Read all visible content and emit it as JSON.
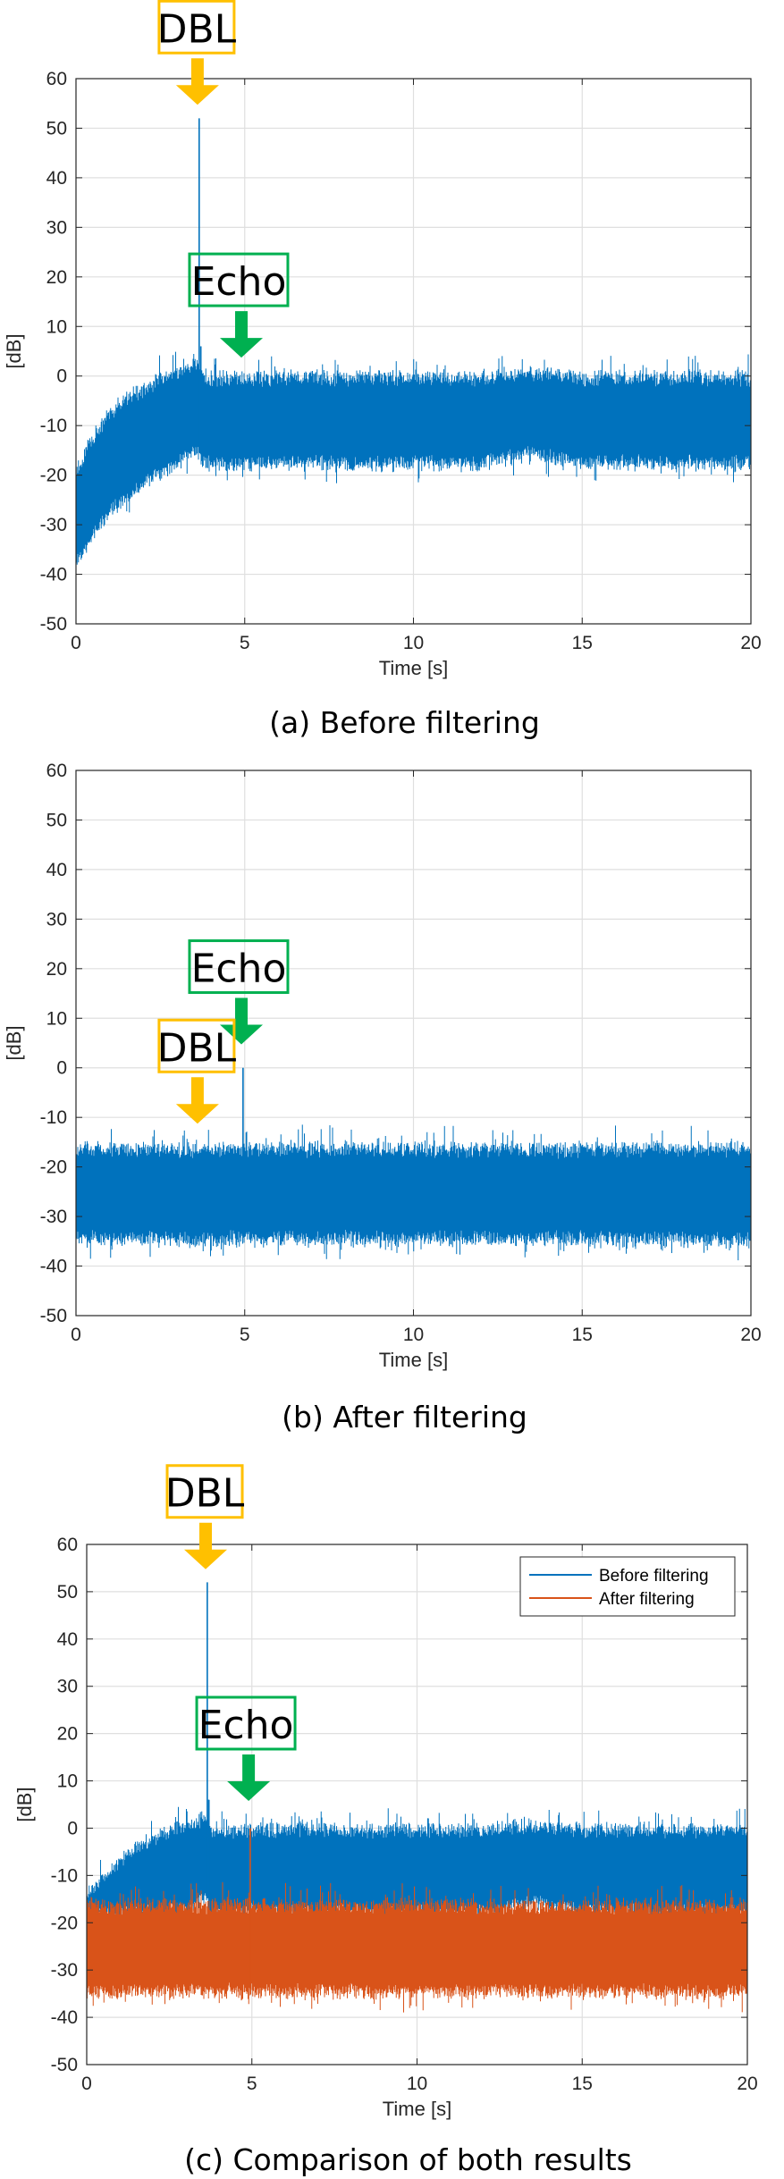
{
  "chart_data": [
    {
      "type": "line",
      "caption": "(a) Before filtering",
      "xlabel": "Time [s]",
      "ylabel": "[dB]",
      "xlim": [
        0,
        20
      ],
      "ylim": [
        -50,
        60
      ],
      "xticks": [
        "0",
        "5",
        "10",
        "15",
        "20"
      ],
      "yticks": [
        "-50",
        "-40",
        "-30",
        "-20",
        "-10",
        "0",
        "10",
        "20",
        "30",
        "40",
        "50",
        "60"
      ],
      "grid": true,
      "legend": null,
      "series": [
        {
          "color": "#0072BD",
          "envelope": {
            "x": [
              0,
              0.5,
              1,
              1.5,
              2,
              2.5,
              3,
              3.4,
              3.6,
              3.8,
              4,
              5,
              6,
              8,
              10,
              12,
              13.5,
              15,
              17,
              20
            ],
            "upper": [
              -20,
              -13,
              -8,
              -5,
              -3,
              -1,
              0,
              1,
              2,
              -1,
              -1,
              -1,
              -1,
              -1,
              -1,
              -1,
              0,
              -1,
              -1,
              -1
            ],
            "lower": [
              -37,
              -32,
              -27,
              -24,
              -21,
              -19,
              -17,
              -15,
              -14,
              -17,
              -17,
              -17,
              -17,
              -17,
              -17,
              -17,
              -15,
              -17,
              -17,
              -17
            ]
          },
          "spikes": [
            {
              "x": 3.65,
              "y": 52
            },
            {
              "x": 3.7,
              "y": 6
            }
          ]
        }
      ],
      "annotations": [
        {
          "text": "DBL",
          "color": "#FFC000",
          "x": 3.6,
          "y": 54
        },
        {
          "text": "Echo",
          "color": "#00B050",
          "x": 4.9,
          "y": 3
        }
      ]
    },
    {
      "type": "line",
      "caption": "(b) After filtering",
      "xlabel": "Time [s]",
      "ylabel": "[dB]",
      "xlim": [
        0,
        20
      ],
      "ylim": [
        -50,
        60
      ],
      "xticks": [
        "0",
        "5",
        "10",
        "15",
        "20"
      ],
      "yticks": [
        "-50",
        "-40",
        "-30",
        "-20",
        "-10",
        "0",
        "10",
        "20",
        "30",
        "40",
        "50",
        "60"
      ],
      "grid": true,
      "legend": null,
      "series": [
        {
          "color": "#0072BD",
          "envelope": {
            "x": [
              0,
              20
            ],
            "upper": [
              -17,
              -17
            ],
            "lower": [
              -34,
              -34
            ]
          },
          "spikes": [
            {
              "x": 4.95,
              "y": 0
            }
          ]
        }
      ],
      "annotations": [
        {
          "text": "Echo",
          "color": "#00B050",
          "x": 4.9,
          "y": 4
        },
        {
          "text": "DBL",
          "color": "#FFC000",
          "x": 3.6,
          "y": -12
        }
      ]
    },
    {
      "type": "line",
      "caption": "(c) Comparison of both results",
      "xlabel": "Time [s]",
      "ylabel": "[dB]",
      "xlim": [
        0,
        20
      ],
      "ylim": [
        -50,
        60
      ],
      "xticks": [
        "0",
        "5",
        "10",
        "15",
        "20"
      ],
      "yticks": [
        "-50",
        "-40",
        "-30",
        "-20",
        "-10",
        "0",
        "10",
        "20",
        "30",
        "40",
        "50",
        "60"
      ],
      "grid": true,
      "legend": "top-right",
      "series": [
        {
          "name": "Before filtering",
          "color": "#0072BD",
          "envelope": {
            "x": [
              0,
              0.5,
              1,
              1.5,
              2,
              2.5,
              3,
              3.4,
              3.6,
              3.8,
              4,
              5,
              6,
              8,
              10,
              12,
              13.5,
              15,
              17,
              20
            ],
            "upper": [
              -15,
              -12,
              -8,
              -5,
              -3,
              -1,
              0,
              1,
              2,
              -1,
              -1,
              -1,
              -1,
              -1,
              -1,
              -1,
              0,
              -1,
              -1,
              -1
            ],
            "lower": [
              -17,
              -17,
              -17,
              -17,
              -17,
              -17,
              -17,
              -15,
              -14,
              -17,
              -17,
              -17,
              -17,
              -17,
              -17,
              -17,
              -15,
              -17,
              -17,
              -17
            ]
          },
          "spikes": [
            {
              "x": 3.65,
              "y": 52
            },
            {
              "x": 3.7,
              "y": 6
            }
          ]
        },
        {
          "name": "After filtering",
          "color": "#D95319",
          "envelope": {
            "x": [
              0,
              20
            ],
            "upper": [
              -17,
              -17
            ],
            "lower": [
              -34,
              -34
            ]
          },
          "spikes": [
            {
              "x": 4.95,
              "y": 0
            }
          ]
        }
      ],
      "annotations": [
        {
          "text": "DBL",
          "color": "#FFC000",
          "x": 3.6,
          "y": 54
        },
        {
          "text": "Echo",
          "color": "#00B050",
          "x": 4.9,
          "y": 5
        }
      ]
    }
  ]
}
